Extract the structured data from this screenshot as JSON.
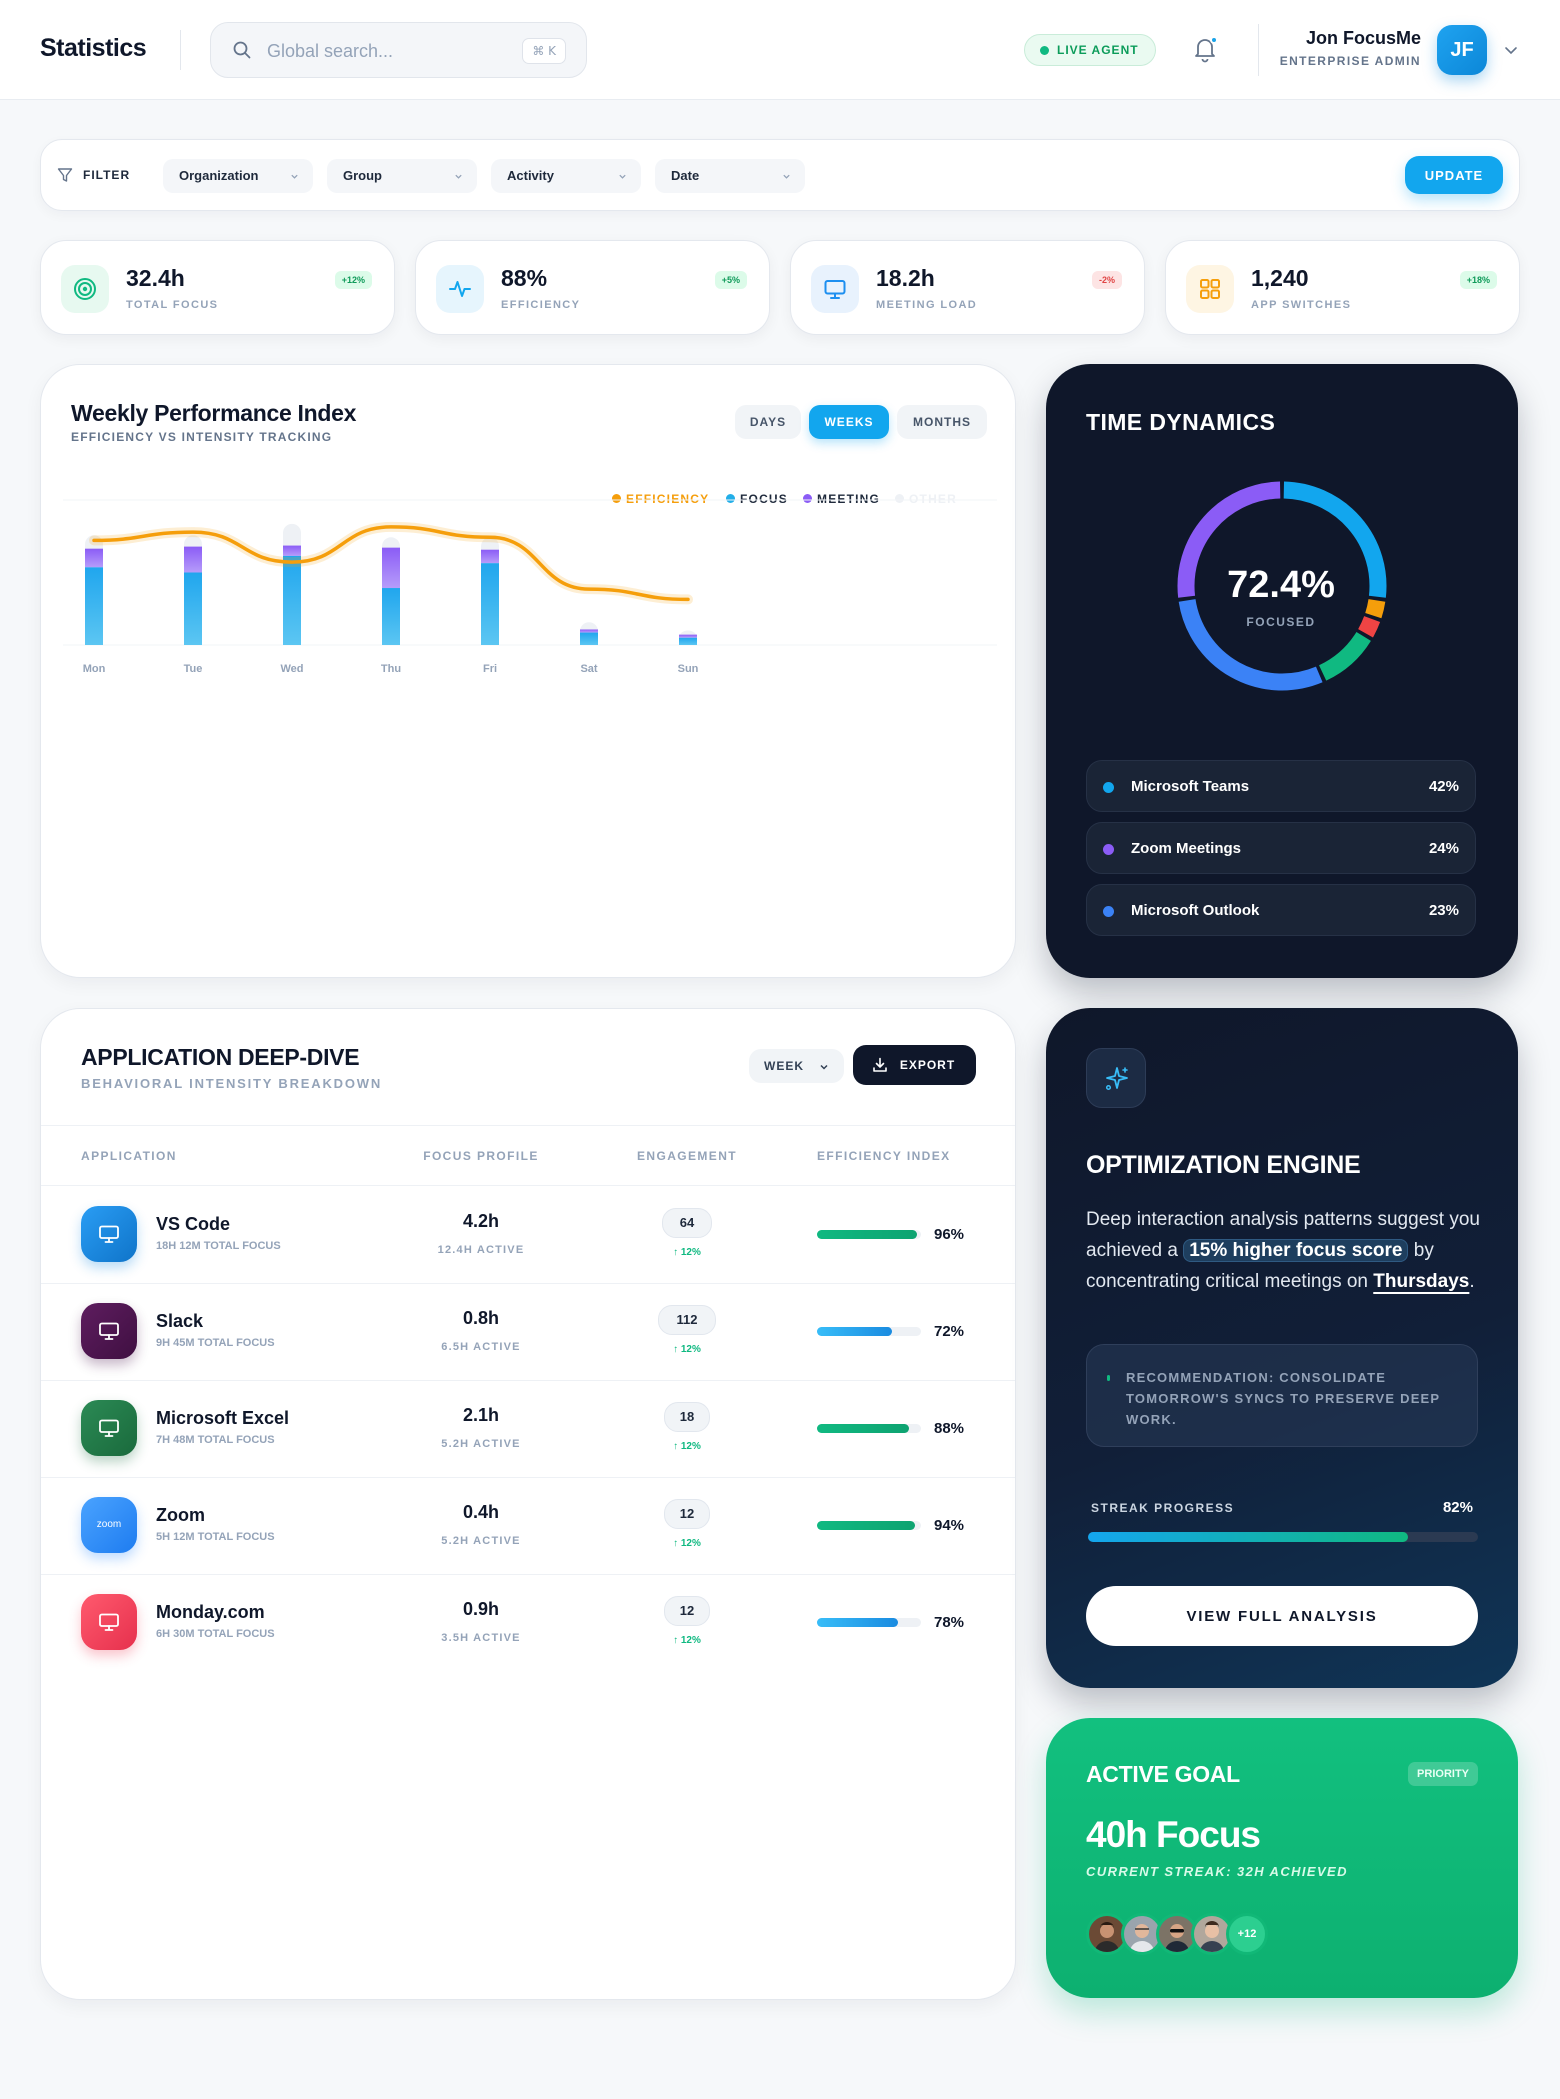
{
  "header": {
    "title": "Statistics",
    "search_placeholder": "Global search...",
    "search_shortcut": "⌘ K",
    "live_label": "LIVE AGENT",
    "user_name": "Jon FocusMe",
    "user_role": "ENTERPRISE ADMIN",
    "user_initials": "JF"
  },
  "filters": {
    "label": "FILTER",
    "selects": [
      "Organization",
      "Group",
      "Activity",
      "Date"
    ],
    "update_label": "UPDATE"
  },
  "stats": [
    {
      "value": "32.4h",
      "label": "TOTAL FOCUS",
      "delta": "+12%",
      "trend": "up",
      "icon": "target-icon",
      "color": "#10b981"
    },
    {
      "value": "88%",
      "label": "EFFICIENCY",
      "delta": "+5%",
      "trend": "up",
      "icon": "activity-icon",
      "color": "#12a6ee"
    },
    {
      "value": "18.2h",
      "label": "MEETING LOAD",
      "delta": "-2%",
      "trend": "down",
      "icon": "monitor-icon",
      "color": "#1d8ff0"
    },
    {
      "value": "1,240",
      "label": "APP SWITCHES",
      "delta": "+18%",
      "trend": "up",
      "icon": "grid-icon",
      "color": "#f59e0b"
    }
  ],
  "performance": {
    "title": "Weekly Performance Index",
    "subtitle": "EFFICIENCY VS INTENSITY TRACKING",
    "tabs": [
      "DAYS",
      "WEEKS",
      "MONTHS"
    ],
    "active_tab": "WEEKS",
    "chart_data": {
      "type": "bar",
      "categories": [
        "Mon",
        "Tue",
        "Wed",
        "Thu",
        "Fri",
        "Sat",
        "Sun"
      ],
      "series": [
        {
          "name": "FOCUS",
          "values": [
            75,
            70,
            86,
            55,
            79,
            12,
            7
          ],
          "color": "#22aee8"
        },
        {
          "name": "MEETING",
          "values": [
            18,
            25,
            10,
            39,
            13,
            3,
            3
          ],
          "color": "#8b5cf6"
        },
        {
          "name": "OTHER",
          "values": [
            13,
            11,
            21,
            10,
            12,
            7,
            4
          ],
          "color": "#eef1f5"
        },
        {
          "name": "EFFICIENCY",
          "type": "line",
          "values": [
            101,
            109,
            80,
            114,
            104,
            54,
            44
          ],
          "color": "#f59e0b"
        }
      ],
      "legend": [
        "EFFICIENCY",
        "FOCUS",
        "MEETING",
        "OTHER"
      ],
      "legend_colors": [
        "#f59e0b",
        "#22aee8",
        "#8b5cf6",
        "#eef1f5"
      ],
      "ylim": [
        0,
        140
      ],
      "grid": true,
      "legend_position": "top-right"
    }
  },
  "time_dynamics": {
    "title": "TIME DYNAMICS",
    "center_value": "72.4%",
    "center_label": "FOCUSED",
    "donut_segments": [
      {
        "color": "#12a6ee",
        "share": 22
      },
      {
        "color": "#f59e0b",
        "share": 2.6
      },
      {
        "color": "#ef4444",
        "share": 2.6
      },
      {
        "color": "#10b981",
        "share": 8
      },
      {
        "color": "#3b82f6",
        "share": 24
      },
      {
        "color": "#8b5cf6",
        "share": 22
      }
    ],
    "apps": [
      {
        "name": "Microsoft Teams",
        "pct": "42%",
        "color": "#12a6ee"
      },
      {
        "name": "Zoom Meetings",
        "pct": "24%",
        "color": "#8b5cf6"
      },
      {
        "name": "Microsoft Outlook",
        "pct": "23%",
        "color": "#3b82f6"
      }
    ]
  },
  "deep_dive": {
    "title": "APPLICATION DEEP-DIVE",
    "subtitle": "BEHAVIORAL INTENSITY BREAKDOWN",
    "week_label": "WEEK",
    "export_label": "EXPORT",
    "columns": [
      "APPLICATION",
      "FOCUS PROFILE",
      "ENGAGEMENT",
      "EFFICIENCY INDEX"
    ],
    "rows": [
      {
        "name": "VS Code",
        "sub": "18H 12M TOTAL FOCUS",
        "focus": "4.2h",
        "active": "12.4H ACTIVE",
        "engagement": "64",
        "eng_delta": "↑ 12%",
        "efficiency": 96,
        "eff_label": "96%",
        "color": "#1a8be0",
        "bar": "green"
      },
      {
        "name": "Slack",
        "sub": "9H 45M TOTAL FOCUS",
        "focus": "0.8h",
        "active": "6.5H ACTIVE",
        "engagement": "112",
        "eng_delta": "↑ 12%",
        "efficiency": 72,
        "eff_label": "72%",
        "color": "#4a154b",
        "bar": "blue"
      },
      {
        "name": "Microsoft Excel",
        "sub": "7H 48M TOTAL FOCUS",
        "focus": "2.1h",
        "active": "5.2H ACTIVE",
        "engagement": "18",
        "eng_delta": "↑ 12%",
        "efficiency": 88,
        "eff_label": "88%",
        "color": "#1e6f43",
        "bar": "green"
      },
      {
        "name": "Zoom",
        "sub": "5H 12M TOTAL FOCUS",
        "focus": "0.4h",
        "active": "5.2H ACTIVE",
        "engagement": "12",
        "eng_delta": "↑ 12%",
        "efficiency": 94,
        "eff_label": "94%",
        "color": "#2d8cff",
        "bar": "green",
        "icon_text": "zoom"
      },
      {
        "name": "Monday.com",
        "sub": "6H 30M TOTAL FOCUS",
        "focus": "0.9h",
        "active": "3.5H ACTIVE",
        "engagement": "12",
        "eng_delta": "↑ 12%",
        "efficiency": 78,
        "eff_label": "78%",
        "color": "#f0405a",
        "bar": "blue"
      }
    ]
  },
  "optimization": {
    "title": "OPTIMIZATION ENGINE",
    "text_1": "Deep interaction analysis patterns suggest you achieved a ",
    "highlight": "15% higher focus score",
    "text_2": " by concentrating critical meetings on ",
    "day": "Thursdays",
    "text_3": ".",
    "recommendation": "RECOMMENDATION: CONSOLIDATE TOMORROW'S SYNCS TO PRESERVE DEEP WORK.",
    "streak_label": "STREAK PROGRESS",
    "streak_value": "82%",
    "streak_fraction": 0.82,
    "button": "VIEW FULL ANALYSIS"
  },
  "goal": {
    "title": "ACTIVE GOAL",
    "badge": "PRIORITY",
    "value": "40h Focus",
    "sub": "CURRENT STREAK: 32H ACHIEVED",
    "more": "+12"
  }
}
